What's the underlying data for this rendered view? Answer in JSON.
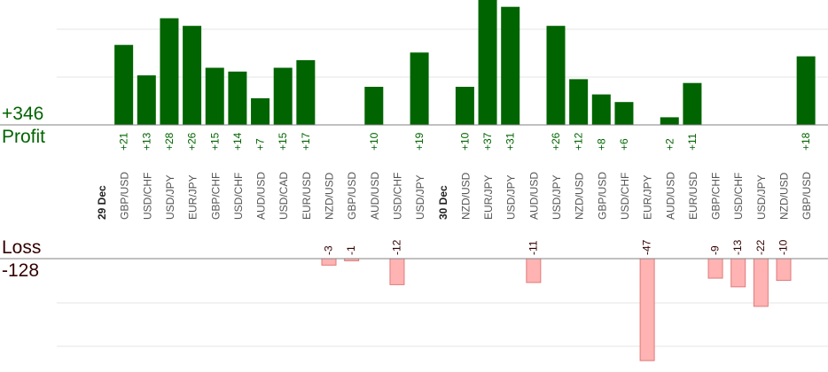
{
  "summary": {
    "profit_total": "+346",
    "profit_label": "Profit",
    "loss_label": "Loss",
    "loss_total": "-128"
  },
  "colors": {
    "profit_bar": "#006400",
    "loss_bar_fill": "#ffb3b3",
    "loss_bar_stroke": "#e07a7a",
    "profit_text": "#006400",
    "loss_text": "#330000",
    "axis_line": "#808080",
    "grid_line": "#e6e6e6",
    "pair_label": "#555555",
    "date_label": "#222222"
  },
  "chart_data": {
    "type": "bar",
    "title": "",
    "xlabel": "",
    "ylabel": "",
    "groups": [
      {
        "date": "29 Dec",
        "trades": [
          {
            "pair": "GBP/USD",
            "value": 21
          },
          {
            "pair": "USD/CHF",
            "value": 13
          },
          {
            "pair": "USD/JPY",
            "value": 28
          },
          {
            "pair": "EUR/JPY",
            "value": 26
          },
          {
            "pair": "GBP/CHF",
            "value": 15
          },
          {
            "pair": "USD/CHF",
            "value": 14
          },
          {
            "pair": "AUD/USD",
            "value": 7
          },
          {
            "pair": "USD/CAD",
            "value": 15
          },
          {
            "pair": "EUR/USD",
            "value": 17
          },
          {
            "pair": "NZD/USD",
            "value": -3
          },
          {
            "pair": "GBP/USD",
            "value": -1
          },
          {
            "pair": "AUD/USD",
            "value": 10
          },
          {
            "pair": "USD/CHF",
            "value": -12
          },
          {
            "pair": "USD/JPY",
            "value": 19
          }
        ]
      },
      {
        "date": "30 Dec",
        "trades": [
          {
            "pair": "NZD/USD",
            "value": 10
          },
          {
            "pair": "EUR/JPY",
            "value": 37
          },
          {
            "pair": "USD/JPY",
            "value": 31
          },
          {
            "pair": "AUD/USD",
            "value": -11
          },
          {
            "pair": "USD/JPY",
            "value": 26
          },
          {
            "pair": "NZD/USD",
            "value": 12
          },
          {
            "pair": "GBP/USD",
            "value": 8
          },
          {
            "pair": "USD/CHF",
            "value": 6
          },
          {
            "pair": "EUR/JPY",
            "value": -47
          },
          {
            "pair": "AUD/USD",
            "value": 2
          },
          {
            "pair": "EUR/USD",
            "value": 11
          },
          {
            "pair": "GBP/CHF",
            "value": -9
          },
          {
            "pair": "USD/CHF",
            "value": -13
          },
          {
            "pair": "USD/JPY",
            "value": -22
          },
          {
            "pair": "NZD/USD",
            "value": -10
          },
          {
            "pair": "GBP/USD",
            "value": 18
          }
        ]
      }
    ],
    "grid": true,
    "legend": "none"
  }
}
